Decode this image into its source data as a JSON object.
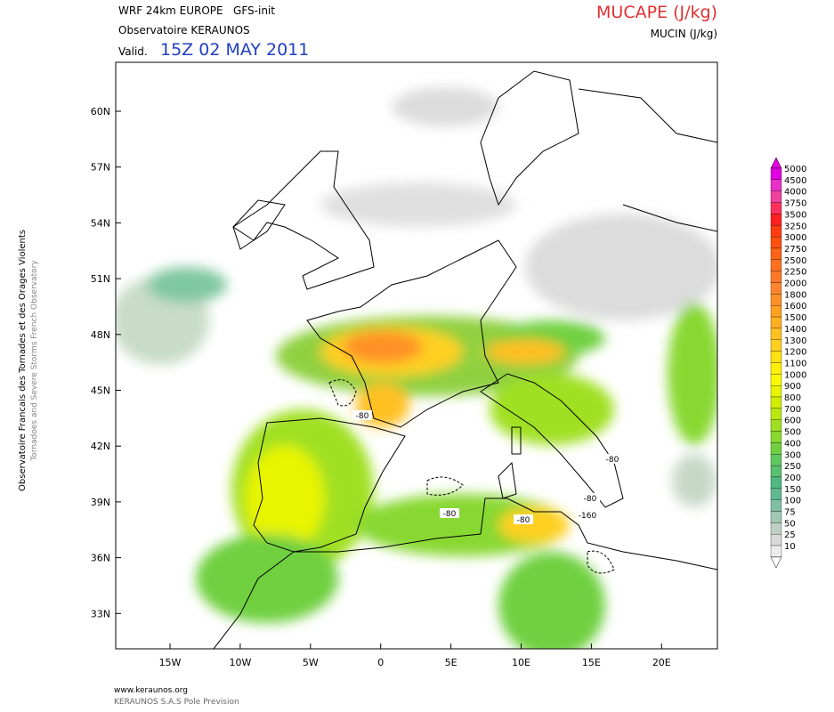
{
  "header": {
    "model": "WRF 24km EUROPE   GFS-init",
    "source": "Observatoire KERAUNOS",
    "valid_label": "Valid.",
    "valid_time": "15Z 02 MAY 2011",
    "field": "MUCAPE (J/kg)",
    "contour_field": "MUCIN (J/kg)"
  },
  "side": {
    "french": "Observatoire Francais des Tornades et des Orages Violents",
    "english": "Tornadoes and Severe Storms French Observatory"
  },
  "map": {
    "lat_labels": [
      "60N",
      "57N",
      "54N",
      "51N",
      "48N",
      "45N",
      "42N",
      "39N",
      "36N",
      "33N"
    ],
    "lon_labels": [
      "15W",
      "10W",
      "5W",
      "0",
      "5E",
      "10E",
      "15E",
      "20E"
    ],
    "contour_labels": [
      "-80",
      "-80",
      "-80",
      "-80",
      "-80",
      "-160"
    ]
  },
  "colorbar": {
    "levels": [
      {
        "value": "5000",
        "color": "#e000e0"
      },
      {
        "value": "4500",
        "color": "#e830c8"
      },
      {
        "value": "4000",
        "color": "#f040a0"
      },
      {
        "value": "3750",
        "color": "#ff3060"
      },
      {
        "value": "3500",
        "color": "#ff2020"
      },
      {
        "value": "3250",
        "color": "#ff3c10"
      },
      {
        "value": "3000",
        "color": "#ff5010"
      },
      {
        "value": "2750",
        "color": "#ff6418"
      },
      {
        "value": "2500",
        "color": "#ff7020"
      },
      {
        "value": "2250",
        "color": "#ff7828"
      },
      {
        "value": "2000",
        "color": "#ff8430"
      },
      {
        "value": "1800",
        "color": "#ff9028"
      },
      {
        "value": "1600",
        "color": "#ffa020"
      },
      {
        "value": "1500",
        "color": "#ffb020"
      },
      {
        "value": "1400",
        "color": "#ffc020"
      },
      {
        "value": "1300",
        "color": "#ffd020"
      },
      {
        "value": "1200",
        "color": "#ffe010"
      },
      {
        "value": "1100",
        "color": "#fff000"
      },
      {
        "value": "1000",
        "color": "#f8f800"
      },
      {
        "value": "900",
        "color": "#e8f400"
      },
      {
        "value": "800",
        "color": "#d0ee00"
      },
      {
        "value": "700",
        "color": "#b8e810"
      },
      {
        "value": "600",
        "color": "#a0e020"
      },
      {
        "value": "500",
        "color": "#88d830"
      },
      {
        "value": "400",
        "color": "#70d040"
      },
      {
        "value": "300",
        "color": "#60c860"
      },
      {
        "value": "250",
        "color": "#58c070"
      },
      {
        "value": "200",
        "color": "#50b880"
      },
      {
        "value": "150",
        "color": "#60b890"
      },
      {
        "value": "100",
        "color": "#80c0a0"
      },
      {
        "value": "75",
        "color": "#a0c8b0"
      },
      {
        "value": "50",
        "color": "#c0d0c8"
      },
      {
        "value": "25",
        "color": "#d8d8d8"
      },
      {
        "value": "10",
        "color": "#ececec"
      }
    ]
  },
  "footer": {
    "url": "www.keraunos.org",
    "company": "KERAUNOS S.A.S Pole Prevision"
  }
}
